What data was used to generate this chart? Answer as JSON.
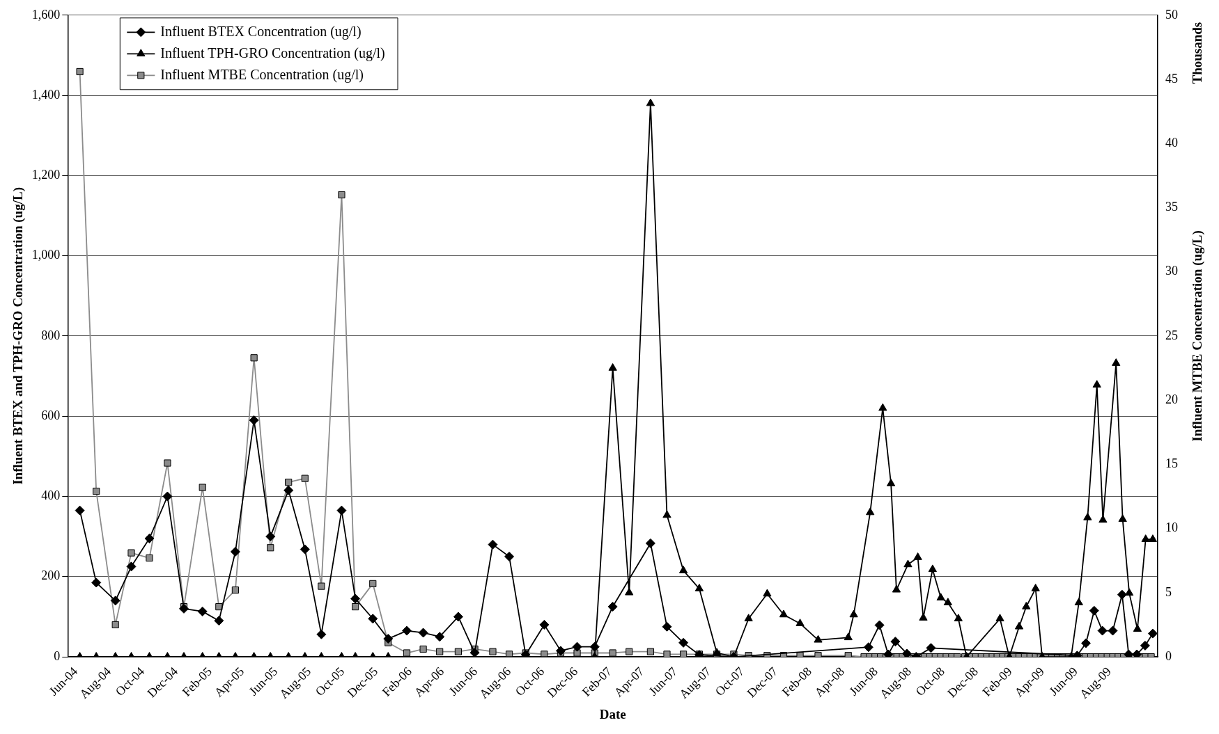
{
  "chart_data": {
    "type": "line",
    "xlabel": "Date",
    "ylabel": "Influent BTEX and TPH-GRO Concentration (ug/L)",
    "y2label": "Influent MTBE Concentration (ug/L)",
    "annotations": [
      "Thousands"
    ],
    "xlim": [
      "2004-05-17",
      "2009-10-28"
    ],
    "xticks": [
      {
        "value": "2004-06-01",
        "label": "Jun-04"
      },
      {
        "value": "2004-08-01",
        "label": "Aug-04"
      },
      {
        "value": "2004-10-01",
        "label": "Oct-04"
      },
      {
        "value": "2004-12-01",
        "label": "Dec-04"
      },
      {
        "value": "2005-02-01",
        "label": "Feb-05"
      },
      {
        "value": "2005-04-01",
        "label": "Apr-05"
      },
      {
        "value": "2005-06-01",
        "label": "Jun-05"
      },
      {
        "value": "2005-08-01",
        "label": "Aug-05"
      },
      {
        "value": "2005-10-01",
        "label": "Oct-05"
      },
      {
        "value": "2005-12-01",
        "label": "Dec-05"
      },
      {
        "value": "2006-02-01",
        "label": "Feb-06"
      },
      {
        "value": "2006-04-01",
        "label": "Apr-06"
      },
      {
        "value": "2006-06-01",
        "label": "Jun-06"
      },
      {
        "value": "2006-08-01",
        "label": "Aug-06"
      },
      {
        "value": "2006-10-01",
        "label": "Oct-06"
      },
      {
        "value": "2006-12-01",
        "label": "Dec-06"
      },
      {
        "value": "2007-02-01",
        "label": "Feb-07"
      },
      {
        "value": "2007-04-01",
        "label": "Apr-07"
      },
      {
        "value": "2007-06-01",
        "label": "Jun-07"
      },
      {
        "value": "2007-08-01",
        "label": "Aug-07"
      },
      {
        "value": "2007-10-01",
        "label": "Oct-07"
      },
      {
        "value": "2007-12-01",
        "label": "Dec-07"
      },
      {
        "value": "2008-02-01",
        "label": "Feb-08"
      },
      {
        "value": "2008-04-01",
        "label": "Apr-08"
      },
      {
        "value": "2008-06-01",
        "label": "Jun-08"
      },
      {
        "value": "2008-08-01",
        "label": "Aug-08"
      },
      {
        "value": "2008-10-01",
        "label": "Oct-08"
      },
      {
        "value": "2008-12-01",
        "label": "Dec-08"
      },
      {
        "value": "2009-02-01",
        "label": "Feb-09"
      },
      {
        "value": "2009-04-01",
        "label": "Apr-09"
      },
      {
        "value": "2009-06-01",
        "label": "Jun-09"
      },
      {
        "value": "2009-08-01",
        "label": "Aug-09"
      }
    ],
    "ylim": [
      0,
      1600
    ],
    "yticks": [
      0,
      200,
      400,
      600,
      800,
      {
        "value": 1000,
        "label": "1,000"
      },
      {
        "value": 1200,
        "label": "1,200"
      },
      {
        "value": 1400,
        "label": "1,400"
      },
      {
        "value": 1600,
        "label": "1,600"
      }
    ],
    "y2lim": [
      0,
      50
    ],
    "y2ticks": [
      0,
      5,
      10,
      15,
      20,
      25,
      30,
      35,
      40,
      45,
      50
    ],
    "grid": "y",
    "legend": "top left",
    "series": [
      {
        "name": "Influent BTEX Concentration (ug/l)",
        "color": "#000000",
        "marker": "diamond",
        "x": [
          "2004-06-08",
          "2004-07-08",
          "2004-08-12",
          "2004-09-10",
          "2004-10-13",
          "2004-11-15",
          "2004-12-15",
          "2005-01-18",
          "2005-02-17",
          "2005-03-19",
          "2005-04-22",
          "2005-05-22",
          "2005-06-24",
          "2005-07-24",
          "2005-08-23",
          "2005-09-29",
          "2005-10-24",
          "2005-11-25",
          "2005-12-23",
          "2006-01-26",
          "2006-02-25",
          "2006-03-27",
          "2006-04-30",
          "2006-05-30",
          "2006-07-02",
          "2006-08-01",
          "2006-08-31",
          "2006-10-04",
          "2006-11-03",
          "2006-12-03",
          "2007-01-04",
          "2007-02-06",
          "2007-04-16",
          "2007-05-16",
          "2007-06-15",
          "2007-07-14",
          "2007-08-15",
          "2007-09-15",
          "2008-05-18",
          "2008-06-07",
          "2008-06-23",
          "2008-07-06",
          "2008-07-27",
          "2008-08-13",
          "2008-09-09",
          "2009-06-03",
          "2009-06-19",
          "2009-07-04",
          "2009-07-19",
          "2009-08-07",
          "2009-08-24",
          "2009-09-05",
          "2009-09-20",
          "2009-10-05",
          "2009-10-19"
        ],
        "values": [
          365,
          185,
          140,
          225,
          295,
          400,
          120,
          113,
          90,
          262,
          590,
          300,
          415,
          268,
          56,
          365,
          145,
          95,
          45,
          65,
          60,
          50,
          100,
          10,
          280,
          250,
          5,
          80,
          15,
          25,
          25,
          125,
          283,
          75,
          35,
          5,
          null,
          0,
          24,
          79,
          6,
          38,
          8,
          0,
          22,
          3,
          34,
          115,
          65,
          65,
          155,
          6,
          6,
          28,
          58
        ]
      },
      {
        "name": "Influent TPH-GRO Concentration (ug/l)",
        "color": "#000000",
        "marker": "triangle",
        "x": [
          "2004-06-08",
          "2004-07-08",
          "2004-08-12",
          "2004-09-10",
          "2004-10-13",
          "2004-11-15",
          "2004-12-15",
          "2005-01-18",
          "2005-02-17",
          "2005-03-19",
          "2005-04-22",
          "2005-05-22",
          "2005-06-24",
          "2005-07-24",
          "2005-08-23",
          "2005-09-29",
          "2005-10-24",
          "2005-11-25",
          "2005-12-23",
          "2007-01-04",
          "2007-02-06",
          "2007-03-08",
          "2007-04-16",
          "2007-05-16",
          "2007-06-15",
          "2007-07-14",
          "2007-08-15",
          "2007-09-15",
          "2007-10-12",
          "2007-11-15",
          "2007-12-15",
          "2008-01-14",
          "2008-02-16",
          "2008-04-11",
          "2008-04-21",
          "2008-05-21",
          "2008-06-13",
          "2008-06-28",
          "2008-07-08",
          "2008-07-29",
          "2008-08-16",
          "2008-08-26",
          "2008-09-12",
          "2008-09-27",
          "2008-10-10",
          "2008-10-29",
          "2008-11-13",
          "2009-01-13",
          "2009-01-30",
          "2009-02-17",
          "2009-03-02",
          "2009-03-19",
          "2009-03-31",
          "2009-05-23",
          "2009-06-06",
          "2009-06-22",
          "2009-07-09",
          "2009-07-20",
          "2009-08-13",
          "2009-08-25",
          "2009-09-06",
          "2009-09-21",
          "2009-10-06",
          "2009-10-19"
        ],
        "values": [
          0,
          0,
          0,
          0,
          0,
          0,
          0,
          0,
          0,
          0,
          0,
          0,
          0,
          0,
          0,
          0,
          0,
          0,
          0,
          0,
          720,
          160,
          1380,
          353,
          215,
          170,
          10,
          0,
          95,
          157,
          105,
          83,
          42,
          48,
          105,
          360,
          620,
          432,
          167,
          230,
          248,
          97,
          218,
          147,
          135,
          95,
          0,
          95,
          0,
          75,
          125,
          170,
          0,
          0,
          135,
          347,
          678,
          341,
          732,
          343,
          159,
          69,
          293,
          293
        ]
      },
      {
        "name": "Influent MTBE Concentration (ug/l)",
        "color": "#8c8c8c",
        "marker": "square",
        "axis": "y2",
        "x": [
          "2004-06-08",
          "2004-07-08",
          "2004-08-12",
          "2004-09-10",
          "2004-10-13",
          "2004-11-15",
          "2004-12-15",
          "2005-01-18",
          "2005-02-17",
          "2005-03-19",
          "2005-04-22",
          "2005-05-22",
          "2005-06-24",
          "2005-07-24",
          "2005-08-23",
          "2005-09-29",
          "2005-10-24",
          "2005-11-25",
          "2005-12-23",
          "2006-01-26",
          "2006-02-25",
          "2006-03-27",
          "2006-04-30",
          "2006-05-30",
          "2006-07-02",
          "2006-08-01",
          "2006-08-31",
          "2006-10-04",
          "2006-11-03",
          "2006-12-03",
          "2007-01-04",
          "2007-02-06",
          "2007-03-08",
          "2007-04-16",
          "2007-05-16",
          "2007-06-15",
          "2007-07-14",
          "2007-08-15",
          "2007-09-15",
          "2007-10-12",
          "2007-11-15",
          "2007-12-15",
          "2008-01-14",
          "2008-02-16",
          "2008-04-11",
          "2008-05-10",
          "2008-05-20",
          "2008-05-30",
          "2008-06-09",
          "2008-06-19",
          "2008-06-29",
          "2008-07-09",
          "2008-07-19",
          "2008-07-29",
          "2008-08-08",
          "2008-08-18",
          "2008-08-28",
          "2008-09-07",
          "2008-09-17",
          "2008-09-27",
          "2008-10-07",
          "2008-10-17",
          "2008-10-27",
          "2008-11-10",
          "2008-11-20",
          "2008-11-30",
          "2008-12-10",
          "2008-12-20",
          "2008-12-30",
          "2009-01-08",
          "2009-01-18",
          "2009-01-28",
          "2009-02-07",
          "2009-02-17",
          "2009-02-27",
          "2009-03-09",
          "2009-03-19",
          "2009-03-28",
          "2009-04-08",
          "2009-04-18",
          "2009-04-28",
          "2009-05-08",
          "2009-05-18",
          "2009-05-28",
          "2009-06-08",
          "2009-06-18",
          "2009-06-28",
          "2009-07-08",
          "2009-07-18",
          "2009-07-28",
          "2009-08-07",
          "2009-08-17",
          "2009-08-27",
          "2009-09-06",
          "2009-09-16",
          "2009-09-26",
          "2009-10-06",
          "2009-10-16"
        ],
        "values": [
          45.6,
          12.9,
          2.5,
          8.1,
          7.7,
          15.1,
          3.9,
          13.2,
          3.9,
          5.2,
          23.3,
          8.5,
          13.6,
          13.9,
          5.5,
          36.0,
          3.9,
          5.7,
          1.1,
          0.3,
          0.6,
          0.4,
          0.4,
          0.6,
          0.4,
          0.2,
          0.3,
          0.2,
          0.3,
          0.3,
          0.3,
          0.3,
          0.4,
          0.4,
          0.2,
          0.2,
          0.2,
          0.2,
          0.2,
          0.1,
          0.1,
          0.1,
          0.1,
          0.1,
          0.1,
          0,
          0,
          0,
          0,
          0,
          0,
          0,
          0,
          0,
          0,
          0,
          0,
          0,
          0,
          0,
          0,
          0,
          0,
          0,
          0,
          0,
          0,
          0,
          0,
          0,
          0,
          0,
          0,
          0,
          0,
          0,
          0,
          0,
          0,
          0,
          0,
          0,
          0,
          0,
          0,
          0,
          0,
          0,
          0,
          0,
          0,
          0,
          0,
          0,
          0,
          0,
          0,
          0
        ]
      }
    ]
  }
}
